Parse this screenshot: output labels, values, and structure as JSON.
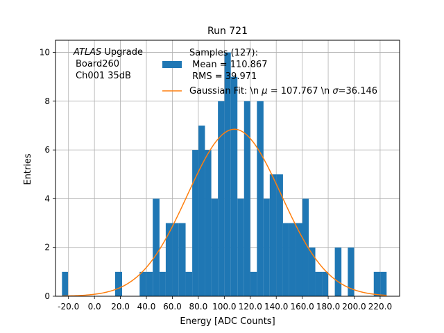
{
  "chart_data": {
    "type": "histogram",
    "title": "Run 721",
    "xlabel": "Energy [ADC Counts]",
    "ylabel": "Entries",
    "xlim": [
      -30,
      235
    ],
    "ylim": [
      0,
      10.5
    ],
    "grid": true,
    "x_ticks": [
      -20,
      0,
      20,
      40,
      60,
      80,
      100,
      120,
      140,
      160,
      180,
      200,
      220
    ],
    "x_tick_labels": [
      "-20.0",
      "0.0",
      "20.0",
      "40.0",
      "60.0",
      "80.0",
      "100.0",
      "120.0",
      "140.0",
      "160.0",
      "180.0",
      "200.0",
      "220.0"
    ],
    "y_ticks": [
      0,
      2,
      4,
      6,
      8,
      10
    ],
    "y_tick_labels": [
      "0",
      "2",
      "4",
      "6",
      "8",
      "10"
    ],
    "annotation": {
      "atlas": "ATLAS",
      "line1_rest": " Upgrade",
      "line2": "Board260",
      "line3": "Ch001 35dB"
    },
    "histogram": {
      "name_lines": [
        "Samples (127):",
        " Mean = 110.867",
        " RMS = 39.971"
      ],
      "color": "#1f77b4",
      "bins": [
        {
          "x0": -25.0,
          "x1": -20.4,
          "count": 1
        },
        {
          "x0": 15.9,
          "x1": 21.3,
          "count": 1
        },
        {
          "x0": 34.8,
          "x1": 39.9,
          "count": 1
        },
        {
          "x0": 39.9,
          "x1": 44.9,
          "count": 1
        },
        {
          "x0": 44.9,
          "x1": 50.1,
          "count": 4
        },
        {
          "x0": 50.1,
          "x1": 54.9,
          "count": 1
        },
        {
          "x0": 54.9,
          "x1": 60.0,
          "count": 3
        },
        {
          "x0": 60.0,
          "x1": 65.0,
          "count": 3
        },
        {
          "x0": 65.0,
          "x1": 70.2,
          "count": 3
        },
        {
          "x0": 70.2,
          "x1": 75.3,
          "count": 1
        },
        {
          "x0": 75.3,
          "x1": 80.1,
          "count": 6
        },
        {
          "x0": 80.1,
          "x1": 85.1,
          "count": 7
        },
        {
          "x0": 85.1,
          "x1": 90.0,
          "count": 6
        },
        {
          "x0": 90.0,
          "x1": 95.1,
          "count": 4
        },
        {
          "x0": 95.1,
          "x1": 100.2,
          "count": 8
        },
        {
          "x0": 100.2,
          "x1": 105.0,
          "count": 10
        },
        {
          "x0": 105.0,
          "x1": 110.1,
          "count": 9
        },
        {
          "x0": 110.1,
          "x1": 115.2,
          "count": 4
        },
        {
          "x0": 115.2,
          "x1": 120.0,
          "count": 8
        },
        {
          "x0": 120.0,
          "x1": 125.1,
          "count": 1
        },
        {
          "x0": 125.1,
          "x1": 130.2,
          "count": 8
        },
        {
          "x0": 130.2,
          "x1": 135.0,
          "count": 4
        },
        {
          "x0": 135.0,
          "x1": 140.1,
          "count": 5
        },
        {
          "x0": 140.1,
          "x1": 145.2,
          "count": 5
        },
        {
          "x0": 145.2,
          "x1": 150.0,
          "count": 3
        },
        {
          "x0": 150.0,
          "x1": 155.1,
          "count": 3
        },
        {
          "x0": 155.1,
          "x1": 160.2,
          "count": 3
        },
        {
          "x0": 160.2,
          "x1": 165.0,
          "count": 4
        },
        {
          "x0": 165.0,
          "x1": 170.1,
          "count": 2
        },
        {
          "x0": 170.1,
          "x1": 175.2,
          "count": 1
        },
        {
          "x0": 175.2,
          "x1": 180.0,
          "count": 1
        },
        {
          "x0": 185.1,
          "x1": 190.2,
          "count": 2
        },
        {
          "x0": 195.1,
          "x1": 200.0,
          "count": 2
        },
        {
          "x0": 215.1,
          "x1": 220.2,
          "count": 1
        },
        {
          "x0": 220.2,
          "x1": 225.0,
          "count": 1
        }
      ]
    },
    "fit": {
      "name": "Gaussian Fit: \\n $\\mu$ = 107.767 \\n $\\sigma$=36.146",
      "label_prefix": "Gaussian Fit: \\n ",
      "mu_symbol": "μ",
      "label_mid": " = 107.767 \\n ",
      "sigma_symbol": "σ",
      "label_suffix": "=36.146",
      "mu": 107.767,
      "sigma": 36.146,
      "amplitude": 6.85,
      "x_range": [
        -25,
        225
      ],
      "color": "#ff7f0e"
    }
  }
}
